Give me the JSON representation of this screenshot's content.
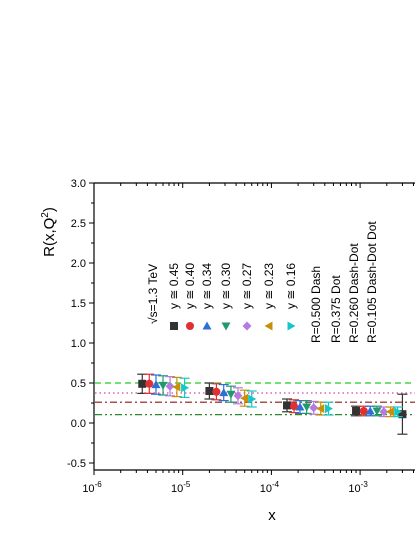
{
  "chart_data": {
    "type": "scatter",
    "title": "",
    "xlabel": "x",
    "ylabel": "R(x,Q",
    "ylabel_sup": "2",
    "ylabel_end": ")",
    "x_scale": "log",
    "xlim": [
      1e-06,
      0.0035
    ],
    "ylim": [
      -0.6,
      3.0
    ],
    "yticks": [
      {
        "value": -0.5,
        "label": "-0.5"
      },
      {
        "value": 0.0,
        "label": "0.0"
      },
      {
        "value": 0.5,
        "label": "0.5"
      },
      {
        "value": 1.0,
        "label": "1.0"
      },
      {
        "value": 1.5,
        "label": "1.5"
      },
      {
        "value": 2.0,
        "label": "2.0"
      },
      {
        "value": 2.5,
        "label": "2.5"
      },
      {
        "value": 3.0,
        "label": "3.0"
      }
    ],
    "xticks": [
      {
        "value": 1e-06,
        "base": "10",
        "exp": "-6"
      },
      {
        "value": 1e-05,
        "base": "10",
        "exp": "-5"
      },
      {
        "value": 0.0001,
        "base": "10",
        "exp": "-4"
      },
      {
        "value": 0.001,
        "base": "10",
        "exp": "-3"
      }
    ],
    "legend_title": "√s=1.3 TeV",
    "legend_placement": "rotated, upper middle",
    "series": [
      {
        "name": "y ≅ 0.45",
        "marker": "square",
        "color": "#333333",
        "x": [
          3.5e-06,
          2e-05,
          0.00015,
          0.0009,
          0.003
        ],
        "y": [
          0.49,
          0.4,
          0.22,
          0.15,
          0.11
        ],
        "err": [
          0.12,
          0.1,
          0.08,
          0.06,
          0.25
        ]
      },
      {
        "name": "y ≅ 0.40",
        "marker": "circle",
        "color": "#e03030",
        "x": [
          4.2e-06,
          2.4e-05,
          0.00018,
          0.0011
        ],
        "y": [
          0.49,
          0.39,
          0.21,
          0.15
        ],
        "err": [
          0.12,
          0.1,
          0.08,
          0.06
        ]
      },
      {
        "name": "y ≅ 0.34",
        "marker": "triangle-up",
        "color": "#2f6ed8",
        "x": [
          5e-06,
          2.9e-05,
          0.00021,
          0.0013
        ],
        "y": [
          0.48,
          0.38,
          0.2,
          0.15
        ],
        "err": [
          0.12,
          0.1,
          0.08,
          0.06
        ]
      },
      {
        "name": "y ≅ 0.30",
        "marker": "triangle-down",
        "color": "#1e9a6e",
        "x": [
          6e-06,
          3.5e-05,
          0.00025,
          0.00155
        ],
        "y": [
          0.47,
          0.36,
          0.2,
          0.15
        ],
        "err": [
          0.12,
          0.1,
          0.08,
          0.06
        ]
      },
      {
        "name": "y ≅ 0.27",
        "marker": "diamond",
        "color": "#b57be0",
        "x": [
          7.2e-06,
          4.2e-05,
          0.0003,
          0.00185
        ],
        "y": [
          0.46,
          0.34,
          0.19,
          0.14
        ],
        "err": [
          0.12,
          0.1,
          0.08,
          0.06
        ]
      },
      {
        "name": "y ≅ 0.23",
        "marker": "triangle-left",
        "color": "#c8900a",
        "x": [
          8.6e-06,
          5e-05,
          0.00036,
          0.0022
        ],
        "y": [
          0.45,
          0.31,
          0.18,
          0.14
        ],
        "err": [
          0.12,
          0.1,
          0.08,
          0.06
        ]
      },
      {
        "name": "y ≅ 0.16",
        "marker": "triangle-right",
        "color": "#17c7c7",
        "x": [
          1.05e-05,
          6e-05,
          0.00044,
          0.00265
        ],
        "y": [
          0.44,
          0.3,
          0.18,
          0.14
        ],
        "err": [
          0.12,
          0.1,
          0.08,
          0.06
        ]
      }
    ],
    "reference_lines": [
      {
        "label": "R=0.500 Dash",
        "y": 0.5,
        "style": "dash",
        "color": "#22cc22"
      },
      {
        "label": "R=0.375 Dot",
        "y": 0.375,
        "style": "dot",
        "color": "#e040a0"
      },
      {
        "label": "R=0.260 Dash-Dot",
        "y": 0.26,
        "style": "dash-dot",
        "color": "#8b1a1a"
      },
      {
        "label": "R=0.105 Dash-Dot Dot",
        "y": 0.105,
        "style": "dash-dot-dot",
        "color": "#2a8a2a"
      }
    ]
  }
}
